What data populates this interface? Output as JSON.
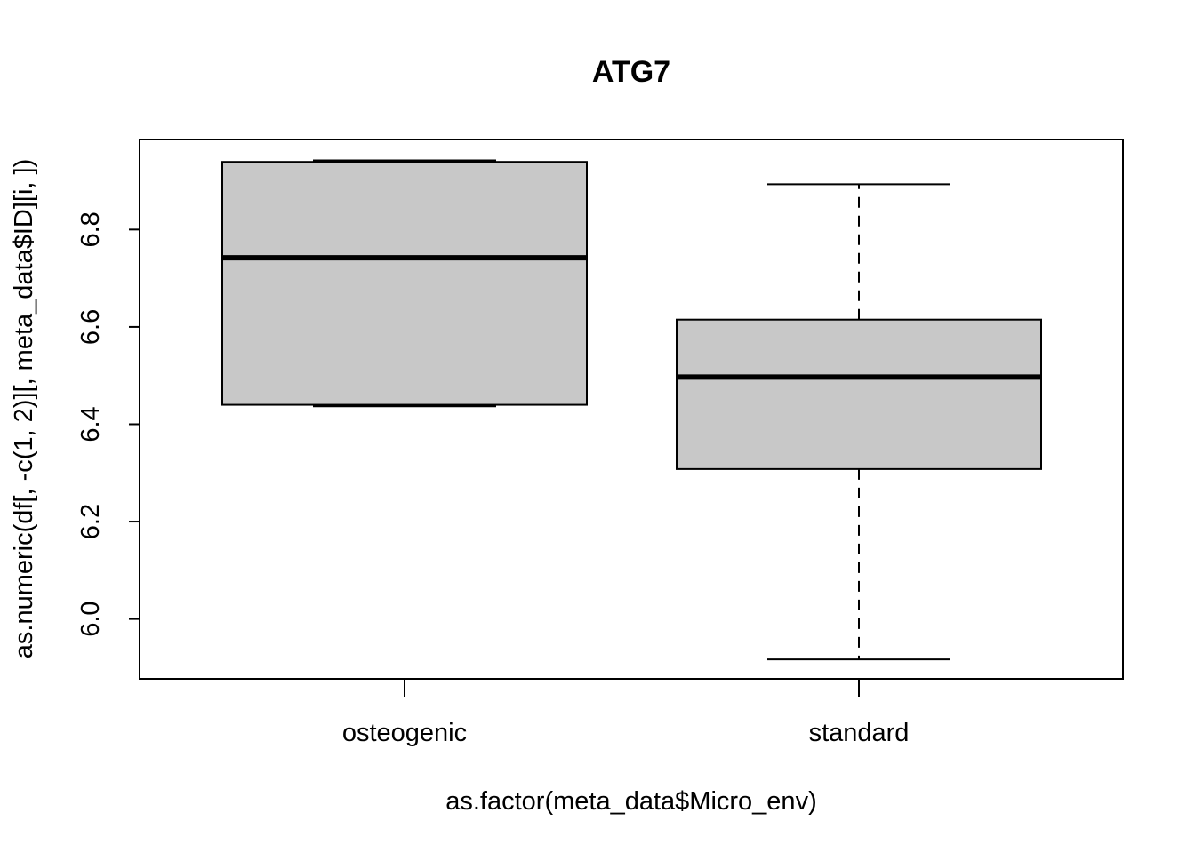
{
  "chart_data": {
    "type": "box",
    "title": "ATG7",
    "xlabel": "as.factor(meta_data$Micro_env)",
    "ylabel": "as.numeric(df[, -c(1, 2)][, meta_data$ID][i, ])",
    "categories": [
      "osteogenic",
      "standard"
    ],
    "yticks": [
      "6.0",
      "6.2",
      "6.4",
      "6.6",
      "6.8"
    ],
    "ylim": [
      5.877,
      6.985
    ],
    "grid": false,
    "legend": "none",
    "box_fill": "#c8c8c8",
    "boxes": [
      {
        "category": "osteogenic",
        "whisker_low": 6.437,
        "q1": 6.44,
        "median": 6.742,
        "q3": 6.939,
        "whisker_high": 6.942
      },
      {
        "category": "standard",
        "whisker_low": 5.917,
        "q1": 6.308,
        "median": 6.497,
        "q3": 6.615,
        "whisker_high": 6.893
      }
    ]
  }
}
